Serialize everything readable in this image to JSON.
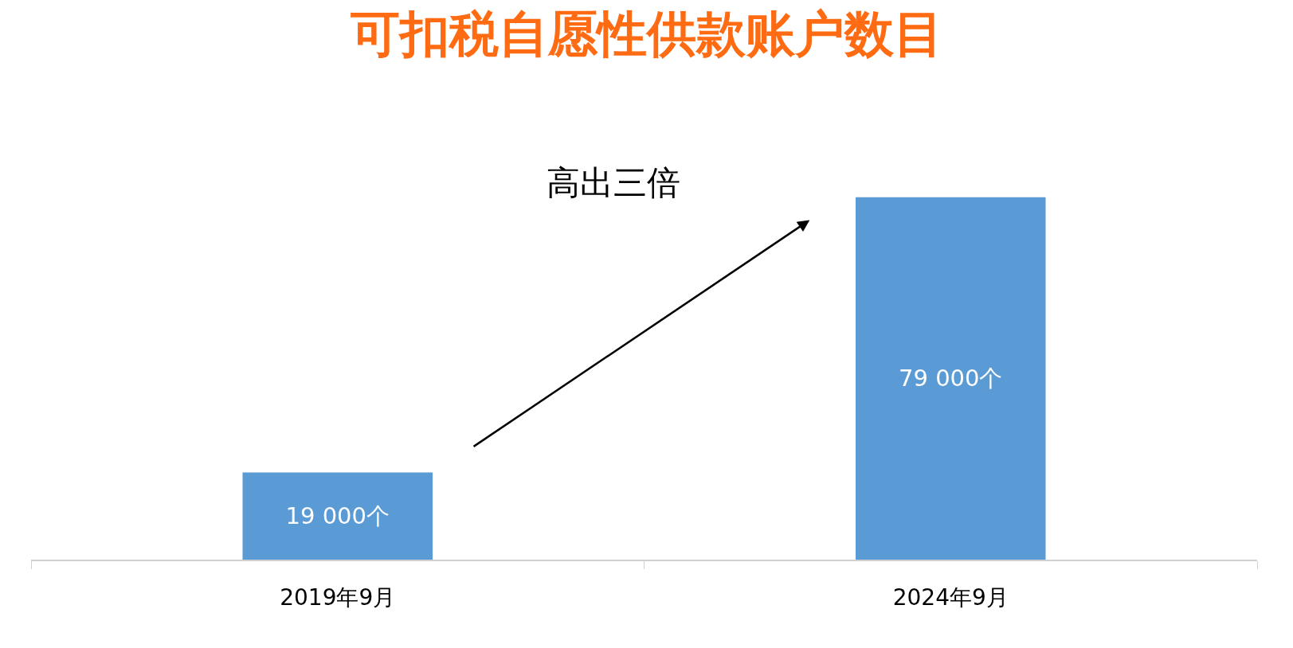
{
  "chart_data": {
    "type": "bar",
    "title": "可扣税自愿性供款账户数目",
    "categories": [
      "2019年9月",
      "2024年9月"
    ],
    "values": [
      19000,
      79000
    ],
    "value_labels": [
      "19 000个",
      "79 000个"
    ],
    "color": "#5b9bd5",
    "legend": false,
    "annotations": [
      "高出三倍"
    ]
  }
}
